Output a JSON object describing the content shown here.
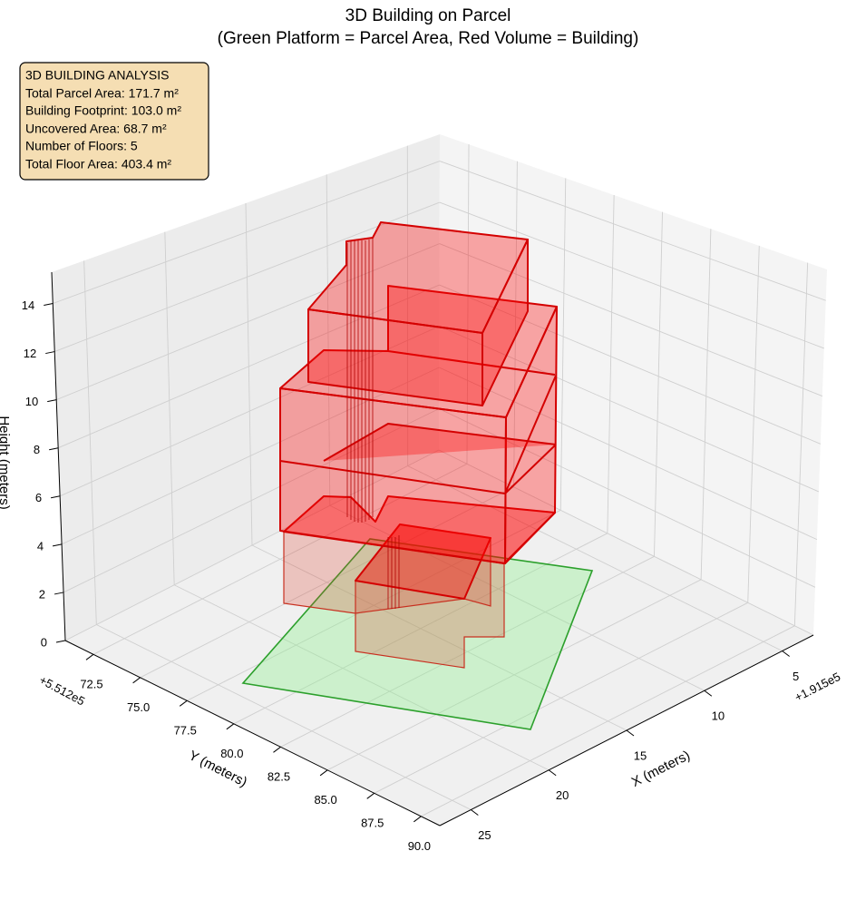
{
  "chart_data": {
    "type": "bar3d",
    "title": "3D Building on Parcel",
    "subtitle": "(Green Platform = Parcel Area, Red Volume = Building)",
    "annotation": [
      "3D BUILDING ANALYSIS",
      "Total Parcel Area: 171.7 m²",
      "Building Footprint: 103.0 m²",
      "Uncovered Area: 68.7 m²",
      "Number of Floors: 5",
      "Total Floor Area: 403.4 m²"
    ],
    "xlabel": "X (meters)",
    "ylabel": "Y (meters)",
    "zlabel": "Height (meters)",
    "x_offset_label": "+1.915e5",
    "y_offset_label": "+5.512e5",
    "xlim": [
      3,
      27
    ],
    "xticks": [
      5,
      10,
      15,
      20,
      25
    ],
    "ylim": [
      71,
      91
    ],
    "yticks": [
      72.5,
      {
        "value": 75,
        "label": "75.0"
      },
      77.5,
      {
        "value": 80,
        "label": "80.0"
      },
      82.5,
      {
        "value": 85,
        "label": "85.0"
      },
      87.5,
      {
        "value": 90,
        "label": "90.0"
      }
    ],
    "zlim": [
      0,
      15.3
    ],
    "zticks": [
      0,
      2,
      4,
      6,
      8,
      10,
      12,
      14
    ],
    "grid": true
  }
}
